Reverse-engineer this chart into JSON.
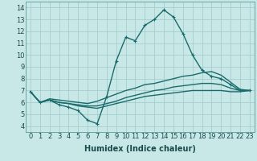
{
  "xlabel": "Humidex (Indice chaleur)",
  "xlim": [
    -0.5,
    23.5
  ],
  "ylim": [
    3.5,
    14.5
  ],
  "xticks": [
    0,
    1,
    2,
    3,
    4,
    5,
    6,
    7,
    8,
    9,
    10,
    11,
    12,
    13,
    14,
    15,
    16,
    17,
    18,
    19,
    20,
    21,
    22,
    23
  ],
  "yticks": [
    4,
    5,
    6,
    7,
    8,
    9,
    10,
    11,
    12,
    13,
    14
  ],
  "bg_color": "#c8e8e8",
  "line_color": "#1a6b6b",
  "grid_color": "#a0c8c8",
  "lines": [
    {
      "x": [
        0,
        1,
        2,
        3,
        4,
        5,
        6,
        7,
        8,
        9,
        10,
        11,
        12,
        13,
        14,
        15,
        16,
        17,
        18,
        19,
        20,
        21,
        22,
        23
      ],
      "y": [
        6.9,
        6.0,
        6.2,
        5.8,
        5.6,
        5.3,
        4.5,
        4.2,
        6.5,
        9.5,
        11.5,
        11.2,
        12.5,
        13.0,
        13.8,
        13.2,
        11.8,
        10.0,
        8.7,
        8.2,
        8.0,
        7.5,
        7.0,
        7.0
      ],
      "marker": true
    },
    {
      "x": [
        0,
        1,
        2,
        3,
        4,
        5,
        6,
        7,
        8,
        9,
        10,
        11,
        12,
        13,
        14,
        15,
        16,
        17,
        18,
        19,
        20,
        21,
        22,
        23
      ],
      "y": [
        6.9,
        6.0,
        6.3,
        6.2,
        6.1,
        6.0,
        5.9,
        6.1,
        6.4,
        6.7,
        7.0,
        7.2,
        7.5,
        7.6,
        7.8,
        8.0,
        8.2,
        8.3,
        8.5,
        8.6,
        8.3,
        7.7,
        7.1,
        7.0
      ],
      "marker": false
    },
    {
      "x": [
        0,
        1,
        2,
        3,
        4,
        5,
        6,
        7,
        8,
        9,
        10,
        11,
        12,
        13,
        14,
        15,
        16,
        17,
        18,
        19,
        20,
        21,
        22,
        23
      ],
      "y": [
        6.9,
        6.0,
        6.2,
        6.0,
        5.9,
        5.8,
        5.7,
        5.7,
        5.9,
        6.1,
        6.4,
        6.6,
        6.8,
        7.0,
        7.1,
        7.3,
        7.4,
        7.5,
        7.6,
        7.6,
        7.5,
        7.2,
        7.0,
        7.0
      ],
      "marker": false
    },
    {
      "x": [
        0,
        1,
        2,
        3,
        4,
        5,
        6,
        7,
        8,
        9,
        10,
        11,
        12,
        13,
        14,
        15,
        16,
        17,
        18,
        19,
        20,
        21,
        22,
        23
      ],
      "y": [
        6.9,
        6.0,
        6.2,
        6.0,
        5.9,
        5.7,
        5.6,
        5.5,
        5.7,
        5.9,
        6.1,
        6.3,
        6.5,
        6.6,
        6.7,
        6.8,
        6.9,
        7.0,
        7.0,
        7.0,
        7.0,
        6.9,
        6.9,
        7.0
      ],
      "marker": false
    }
  ],
  "markersize": 2.5,
  "linewidth": 1.0,
  "tick_fontsize": 6,
  "label_fontsize": 7
}
